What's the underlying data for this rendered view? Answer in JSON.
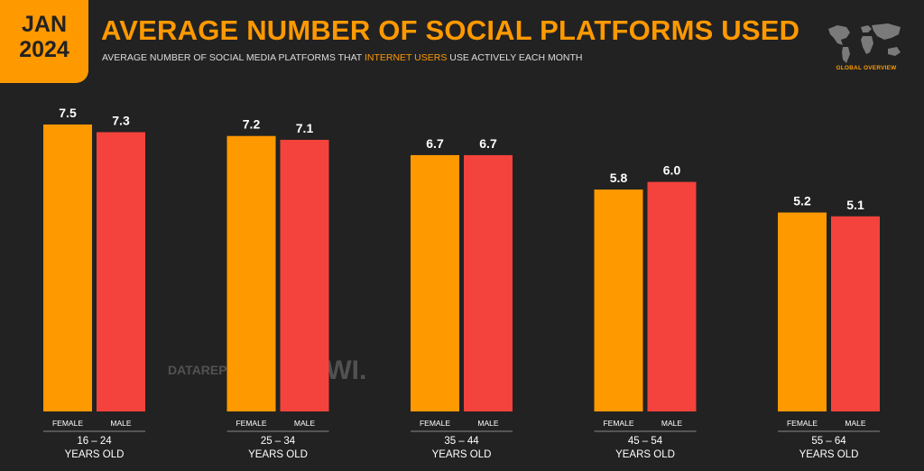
{
  "badge": {
    "month": "JAN",
    "year": "2024"
  },
  "header": {
    "title": "AVERAGE NUMBER OF SOCIAL PLATFORMS USED",
    "subtitle_before": "AVERAGE NUMBER OF SOCIAL MEDIA PLATFORMS THAT ",
    "subtitle_highlight": "INTERNET USERS",
    "subtitle_after": " USE ACTIVELY EACH MONTH"
  },
  "map": {
    "caption": "GLOBAL OVERVIEW",
    "icon": "world-map-icon"
  },
  "watermark": {
    "datareportal": "DATAREPORTAL",
    "gwi": "GWI."
  },
  "colors": {
    "background": "#222222",
    "accent": "#ff9900",
    "female": "#ff9900",
    "male": "#f4433c"
  },
  "chart_data": {
    "type": "bar",
    "categories": [
      "16 – 24",
      "25 – 34",
      "35 – 44",
      "45 – 54",
      "55 – 64"
    ],
    "category_sublabel": "YEARS OLD",
    "series": [
      {
        "name": "FEMALE",
        "values": [
          7.5,
          7.2,
          6.7,
          5.8,
          5.2
        ]
      },
      {
        "name": "MALE",
        "values": [
          7.3,
          7.1,
          6.7,
          6.0,
          5.1
        ]
      }
    ],
    "value_labels": [
      [
        "7.5",
        "7.2",
        "6.7",
        "5.8",
        "5.2"
      ],
      [
        "7.3",
        "7.1",
        "6.7",
        "6.0",
        "5.1"
      ]
    ],
    "ylim": [
      0,
      7.5
    ],
    "grid": false,
    "legend": "none"
  }
}
